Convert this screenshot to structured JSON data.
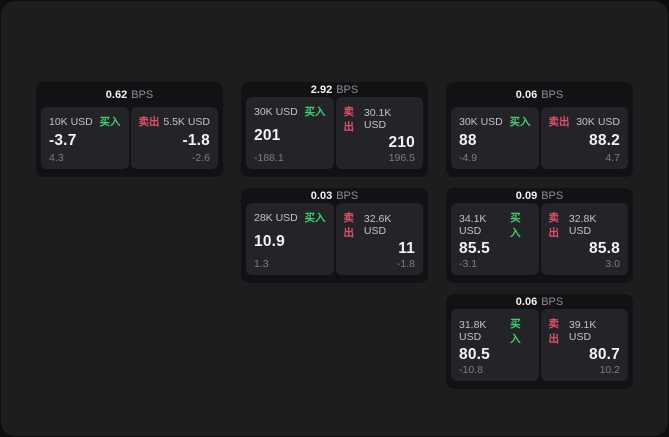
{
  "theme": {
    "page_bg": "#0e0e10",
    "window_bg": "#1d1d1f",
    "card_bg": "#121214",
    "panel_bg": "#242428",
    "text_primary": "#f2f2f4",
    "text_secondary": "#8e8e93",
    "buy_color": "#3ecf6e",
    "sell_color": "#e0506a"
  },
  "labels": {
    "bps_unit": "BPS",
    "buy": "买入",
    "sell": "卖出"
  },
  "cards": [
    {
      "row": 1,
      "col": 1,
      "bps": "0.62",
      "buy": {
        "amount": "10K USD",
        "value": "-3.7",
        "sub": "4.3"
      },
      "sell": {
        "amount": "5.5K USD",
        "value": "-1.8",
        "sub": "-2.6"
      }
    },
    {
      "row": 1,
      "col": 2,
      "bps": "2.92",
      "buy": {
        "amount": "30K USD",
        "value": "201",
        "sub": "-188.1"
      },
      "sell": {
        "amount": "30.1K USD",
        "value": "210",
        "sub": "196.5"
      }
    },
    {
      "row": 1,
      "col": 3,
      "bps": "0.06",
      "buy": {
        "amount": "30K USD",
        "value": "88",
        "sub": "-4.9"
      },
      "sell": {
        "amount": "30K USD",
        "value": "88.2",
        "sub": "4.7"
      }
    },
    {
      "row": 2,
      "col": 2,
      "bps": "0.03",
      "buy": {
        "amount": "28K USD",
        "value": "10.9",
        "sub": "1.3"
      },
      "sell": {
        "amount": "32.6K USD",
        "value": "11",
        "sub": "-1.8"
      }
    },
    {
      "row": 2,
      "col": 3,
      "bps": "0.09",
      "buy": {
        "amount": "34.1K USD",
        "value": "85.5",
        "sub": "-3.1"
      },
      "sell": {
        "amount": "32.8K USD",
        "value": "85.8",
        "sub": "3.0"
      }
    },
    {
      "row": 3,
      "col": 3,
      "bps": "0.06",
      "buy": {
        "amount": "31.8K USD",
        "value": "80.5",
        "sub": "-10.8"
      },
      "sell": {
        "amount": "39.1K USD",
        "value": "80.7",
        "sub": "10.2"
      }
    }
  ]
}
